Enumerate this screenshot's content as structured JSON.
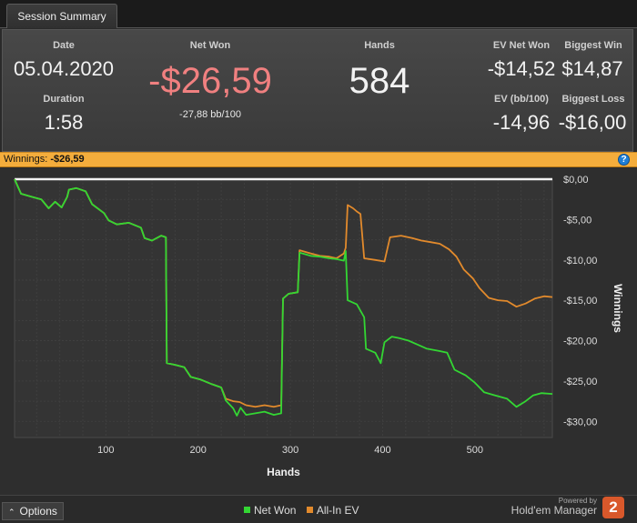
{
  "tab": {
    "title": "Session Summary"
  },
  "stats": {
    "date_label": "Date",
    "date_value": "05.04.2020",
    "duration_label": "Duration",
    "duration_value": "1:58",
    "net_won_label": "Net Won",
    "net_won_value": "-$26,59",
    "net_won_bb": "-27,88 bb/100",
    "hands_label": "Hands",
    "hands_value": "584",
    "ev_net_won_label": "EV Net Won",
    "ev_net_won_value": "-$14,52",
    "biggest_win_label": "Biggest Win",
    "biggest_win_value": "$14,87",
    "ev_bb_label": "EV (bb/100)",
    "ev_bb_value": "-14,96",
    "biggest_loss_label": "Biggest Loss",
    "biggest_loss_value": "-$16,00"
  },
  "winnings_bar": {
    "label": "Winnings:",
    "value": "-$26,59",
    "help_icon": "help-icon"
  },
  "colors": {
    "net_won": "#33d633",
    "all_in_ev": "#e28a2c",
    "accent": "#f4ad3c",
    "negative": "#f08080"
  },
  "chart_data": {
    "type": "line",
    "xlabel": "Hands",
    "ylabel": "Winnings",
    "xlim": [
      1,
      584
    ],
    "ylim": [
      -32,
      0
    ],
    "x_ticks": [
      100,
      200,
      300,
      400,
      500
    ],
    "y_ticks": [
      {
        "v": 0,
        "label": "$0,00"
      },
      {
        "v": -5,
        "label": "-$5,00"
      },
      {
        "v": -10,
        "label": "-$10,00"
      },
      {
        "v": -15,
        "label": "-$15,00"
      },
      {
        "v": -20,
        "label": "-$20,00"
      },
      {
        "v": -25,
        "label": "-$25,00"
      },
      {
        "v": -30,
        "label": "-$30,00"
      }
    ],
    "grid": true,
    "legend_position": "bottom-center",
    "series": [
      {
        "name": "Net Won",
        "points": [
          [
            1,
            0
          ],
          [
            8,
            -1.8
          ],
          [
            20,
            -2.2
          ],
          [
            30,
            -2.5
          ],
          [
            38,
            -3.6
          ],
          [
            45,
            -2.8
          ],
          [
            52,
            -3.5
          ],
          [
            58,
            -2.2
          ],
          [
            60,
            -1.3
          ],
          [
            68,
            -1.1
          ],
          [
            78,
            -1.5
          ],
          [
            85,
            -3.1
          ],
          [
            98,
            -4.2
          ],
          [
            103,
            -5.1
          ],
          [
            112,
            -5.6
          ],
          [
            125,
            -5.4
          ],
          [
            138,
            -6.0
          ],
          [
            142,
            -7.3
          ],
          [
            150,
            -7.6
          ],
          [
            160,
            -7.0
          ],
          [
            165,
            -7.2
          ],
          [
            166,
            -22.8
          ],
          [
            175,
            -23.0
          ],
          [
            185,
            -23.3
          ],
          [
            192,
            -24.5
          ],
          [
            202,
            -24.8
          ],
          [
            215,
            -25.4
          ],
          [
            225,
            -25.8
          ],
          [
            230,
            -27.4
          ],
          [
            238,
            -28.4
          ],
          [
            242,
            -29.3
          ],
          [
            246,
            -28.3
          ],
          [
            252,
            -29.2
          ],
          [
            262,
            -29.0
          ],
          [
            272,
            -28.8
          ],
          [
            282,
            -29.2
          ],
          [
            290,
            -29.0
          ],
          [
            292,
            -14.8
          ],
          [
            298,
            -14.2
          ],
          [
            308,
            -14.0
          ],
          [
            310,
            -9.1
          ],
          [
            322,
            -9.5
          ],
          [
            332,
            -9.6
          ],
          [
            342,
            -9.8
          ],
          [
            350,
            -9.9
          ],
          [
            358,
            -10.1
          ],
          [
            360,
            -8.9
          ],
          [
            362,
            -15.0
          ],
          [
            372,
            -15.5
          ],
          [
            380,
            -17.1
          ],
          [
            382,
            -21.0
          ],
          [
            392,
            -21.5
          ],
          [
            398,
            -22.8
          ],
          [
            402,
            -20.2
          ],
          [
            410,
            -19.5
          ],
          [
            418,
            -19.7
          ],
          [
            428,
            -20.0
          ],
          [
            438,
            -20.5
          ],
          [
            448,
            -21.0
          ],
          [
            462,
            -21.3
          ],
          [
            470,
            -21.5
          ],
          [
            478,
            -23.6
          ],
          [
            490,
            -24.3
          ],
          [
            500,
            -25.2
          ],
          [
            510,
            -26.4
          ],
          [
            522,
            -26.8
          ],
          [
            535,
            -27.2
          ],
          [
            545,
            -28.2
          ],
          [
            555,
            -27.5
          ],
          [
            563,
            -26.8
          ],
          [
            572,
            -26.5
          ],
          [
            584,
            -26.6
          ]
        ]
      },
      {
        "name": "All-In EV",
        "points": [
          [
            1,
            0
          ],
          [
            8,
            -1.8
          ],
          [
            20,
            -2.2
          ],
          [
            30,
            -2.5
          ],
          [
            38,
            -3.6
          ],
          [
            45,
            -2.8
          ],
          [
            52,
            -3.5
          ],
          [
            58,
            -2.2
          ],
          [
            60,
            -1.3
          ],
          [
            68,
            -1.1
          ],
          [
            78,
            -1.5
          ],
          [
            85,
            -3.1
          ],
          [
            98,
            -4.2
          ],
          [
            103,
            -5.1
          ],
          [
            112,
            -5.6
          ],
          [
            125,
            -5.4
          ],
          [
            138,
            -6.0
          ],
          [
            142,
            -7.3
          ],
          [
            150,
            -7.6
          ],
          [
            160,
            -7.0
          ],
          [
            165,
            -7.2
          ],
          [
            166,
            -22.8
          ],
          [
            175,
            -23.0
          ],
          [
            185,
            -23.3
          ],
          [
            192,
            -24.5
          ],
          [
            202,
            -24.8
          ],
          [
            215,
            -25.4
          ],
          [
            225,
            -25.8
          ],
          [
            230,
            -27.2
          ],
          [
            238,
            -27.5
          ],
          [
            245,
            -27.6
          ],
          [
            252,
            -28.0
          ],
          [
            262,
            -28.2
          ],
          [
            272,
            -28.0
          ],
          [
            282,
            -28.2
          ],
          [
            290,
            -28.0
          ],
          [
            292,
            -14.8
          ],
          [
            298,
            -14.2
          ],
          [
            308,
            -14.0
          ],
          [
            310,
            -8.8
          ],
          [
            322,
            -9.2
          ],
          [
            332,
            -9.5
          ],
          [
            342,
            -9.6
          ],
          [
            350,
            -9.8
          ],
          [
            358,
            -9.2
          ],
          [
            360,
            -8.5
          ],
          [
            362,
            -3.2
          ],
          [
            368,
            -3.6
          ],
          [
            372,
            -4.0
          ],
          [
            376,
            -4.3
          ],
          [
            380,
            -9.8
          ],
          [
            392,
            -10.0
          ],
          [
            402,
            -10.2
          ],
          [
            408,
            -7.2
          ],
          [
            420,
            -7.0
          ],
          [
            432,
            -7.3
          ],
          [
            442,
            -7.6
          ],
          [
            452,
            -7.8
          ],
          [
            462,
            -8.0
          ],
          [
            472,
            -8.7
          ],
          [
            480,
            -9.6
          ],
          [
            488,
            -11.2
          ],
          [
            498,
            -12.3
          ],
          [
            505,
            -13.5
          ],
          [
            515,
            -14.7
          ],
          [
            525,
            -15.0
          ],
          [
            535,
            -15.1
          ],
          [
            545,
            -15.8
          ],
          [
            555,
            -15.4
          ],
          [
            565,
            -14.8
          ],
          [
            575,
            -14.5
          ],
          [
            584,
            -14.6
          ]
        ]
      }
    ]
  },
  "bottom": {
    "options_label": "Options",
    "legend_net_won": "Net Won",
    "legend_all_in_ev": "All-In EV",
    "powered_by": "Powered by",
    "brand_name": "Hold'em Manager",
    "logo_text": "2"
  }
}
